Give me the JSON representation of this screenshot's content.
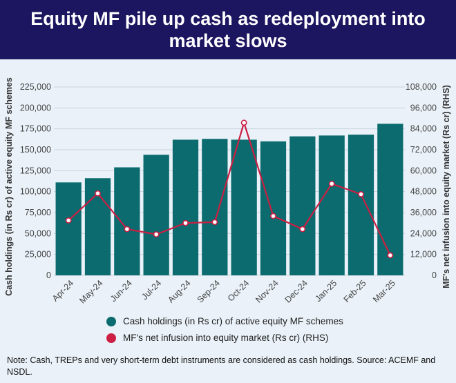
{
  "header": {
    "title": "Equity MF pile up cash as redeployment into market slows"
  },
  "chart_data": {
    "type": "bar",
    "categories": [
      "Apr-24",
      "May-24",
      "Jun-24",
      "Jul-24",
      "Aug-24",
      "Sep-24",
      "Oct-24",
      "Nov-24",
      "Dec-24",
      "Jan-25",
      "Feb-25",
      "Mar-25"
    ],
    "series": [
      {
        "name": "Cash holdings (in Rs cr) of active equity MF schemes",
        "kind": "bar",
        "axis": "left",
        "color": "#0b6b6e",
        "values": [
          111000,
          116000,
          129000,
          144000,
          162000,
          163000,
          162000,
          160000,
          166000,
          167000,
          168000,
          181000
        ]
      },
      {
        "name": "MF's net infusion into equity market (Rs cr) (RHS)",
        "kind": "line",
        "axis": "right",
        "color": "#cc1f43",
        "values": [
          31500,
          47000,
          26500,
          23500,
          30000,
          30500,
          87500,
          34000,
          26500,
          52500,
          46500,
          11500
        ]
      }
    ],
    "ylabel": "Cash holdings (in Rs cr) of active equity MF schemes",
    "ylabel_right": "MF's net infusion into equity market (Rs cr) (RHS)",
    "ylim": [
      0,
      225000
    ],
    "ylim_right": [
      0,
      108000
    ],
    "yticks": [
      "0",
      "25,000",
      "50,000",
      "75,000",
      "100,000",
      "125,000",
      "150,000",
      "175,000",
      "200,000",
      "225,000"
    ],
    "yticks_right": [
      "0",
      "12,000",
      "24,000",
      "36,000",
      "48,000",
      "60,000",
      "72,000",
      "84,000",
      "96,000",
      "108,000"
    ],
    "grid": true,
    "legend_position": "bottom"
  },
  "note": "Note: Cash, TREPs and very short-term debt instruments are considered as cash holdings. Source: ACEMF and NSDL."
}
